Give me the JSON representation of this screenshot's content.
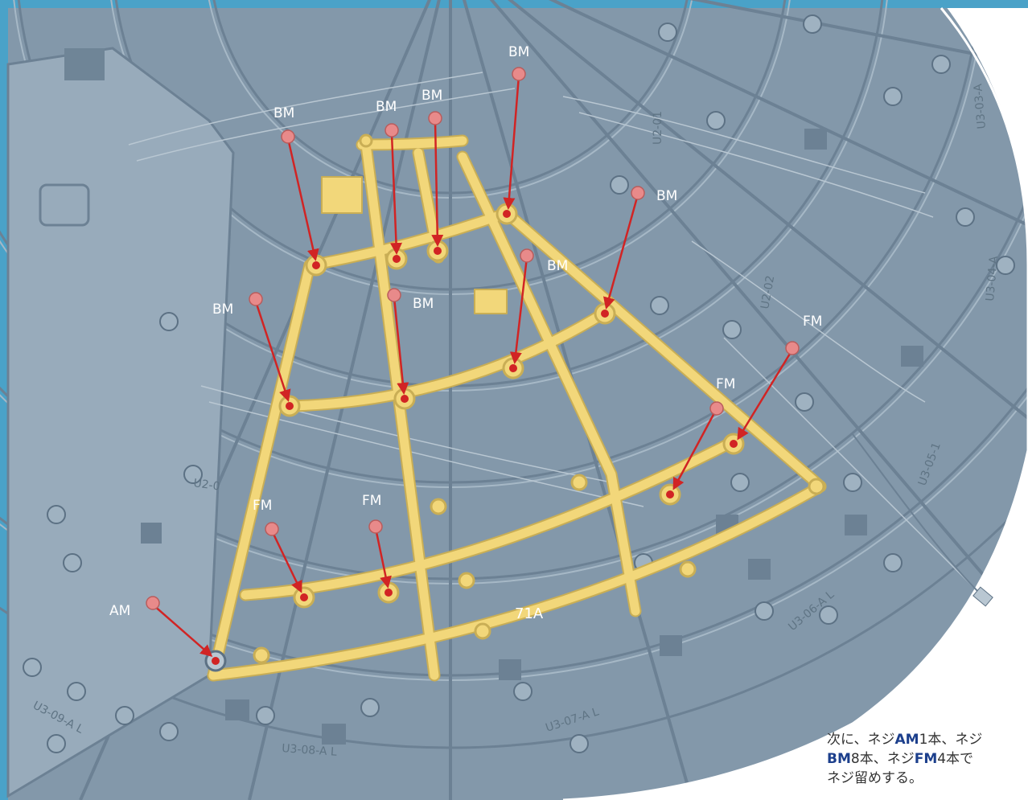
{
  "colors": {
    "frame": "#4aa2c8",
    "model_grey": "#7f95a7",
    "model_light": "#9fb2c1",
    "highlight_part": "#f2d77a",
    "arrow": "#d12424",
    "screw": "#e88a8a"
  },
  "screw_labels": {
    "bm": "BM",
    "fm": "FM",
    "am": "AM"
  },
  "part_numbers": {
    "u2_01": "U2-01",
    "u2_02": "U2-02",
    "u3_03": "U3-03-A",
    "u3_04": "U3-04-A",
    "u3_05": "U3-05-1",
    "u3_06": "U3-06-A L",
    "u3_07": "U3-07-A L",
    "u3_08": "U3-08-A L",
    "u3_09": "U3-09-A L",
    "u2_left": "U2-0"
  },
  "part_label": "71A",
  "instruction": {
    "line1_a": "次に、ネジ",
    "line1_b": "AM",
    "line1_c": "1本、ネジ",
    "line2_a": "BM",
    "line2_b": "8本、ネジ",
    "line2_c": "FM",
    "line2_d": "4本で",
    "line3": "ネジ留めする。"
  }
}
